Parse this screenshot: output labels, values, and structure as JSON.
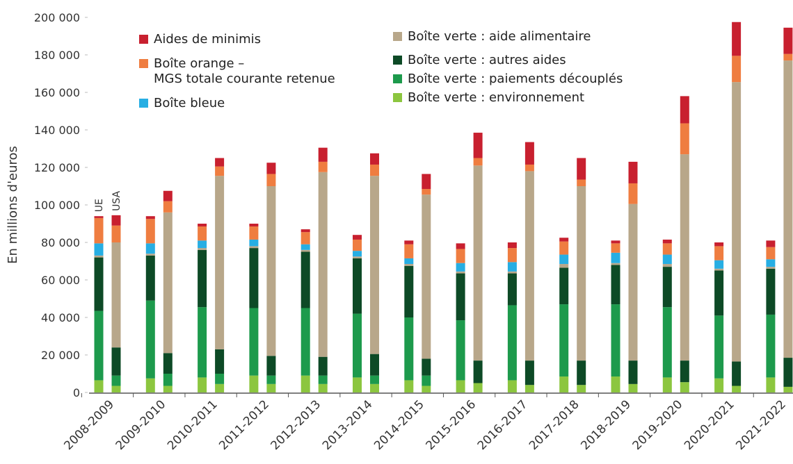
{
  "chart_data": {
    "type": "grouped-stacked-bar",
    "y_label": "En millions d'euros",
    "groups": [
      "UE",
      "USA"
    ],
    "categories": [
      "2008-2009",
      "2009-2010",
      "2010-2011",
      "2011-2012",
      "2012-2013",
      "2013-2014",
      "2014-2015",
      "2015-2016",
      "2016-2017",
      "2017-2018",
      "2018-2019",
      "2019-2020",
      "2020-2021",
      "2021-2022"
    ],
    "ylim": [
      0,
      200000
    ],
    "yticks": [
      0,
      {
        "value": 20000,
        "label": "20 000"
      },
      {
        "value": 40000,
        "label": "40 000"
      },
      {
        "value": 60000,
        "label": "60 000"
      },
      {
        "value": 80000,
        "label": "80 000"
      },
      {
        "value": 100000,
        "label": "100 000"
      },
      {
        "value": 120000,
        "label": "120 000"
      },
      {
        "value": 140000,
        "label": "140 000"
      },
      {
        "value": 160000,
        "label": "160 000"
      },
      {
        "value": 180000,
        "label": "180 000"
      },
      {
        "value": 200000,
        "label": "200 000"
      }
    ],
    "series": [
      {
        "name": "Boîte verte : environnement",
        "color": "#8cc63f",
        "values": [
          [
            6500,
            3500
          ],
          [
            7500,
            3500
          ],
          [
            8000,
            4500
          ],
          [
            9000,
            4500
          ],
          [
            9000,
            4500
          ],
          [
            8000,
            4500
          ],
          [
            6500,
            3500
          ],
          [
            6500,
            5000
          ],
          [
            6500,
            4000
          ],
          [
            8500,
            4000
          ],
          [
            8500,
            4500
          ],
          [
            8000,
            5500
          ],
          [
            7500,
            3500
          ],
          [
            8000,
            3000
          ]
        ]
      },
      {
        "name": "Boîte verte : paiements découplés",
        "color": "#1d9a4c",
        "values": [
          [
            37000,
            5500
          ],
          [
            41500,
            6500
          ],
          [
            37500,
            5500
          ],
          [
            36000,
            4500
          ],
          [
            36000,
            4500
          ],
          [
            34000,
            4500
          ],
          [
            33500,
            5500
          ],
          [
            32000,
            0
          ],
          [
            40000,
            0
          ],
          [
            38500,
            0
          ],
          [
            38500,
            0
          ],
          [
            37500,
            0
          ],
          [
            33500,
            0
          ],
          [
            33500,
            0
          ]
        ]
      },
      {
        "name": "Boîte verte : autres aides",
        "color": "#0d4a26",
        "values": [
          [
            28500,
            15000
          ],
          [
            24000,
            11000
          ],
          [
            30500,
            13000
          ],
          [
            32000,
            10500
          ],
          [
            30000,
            10000
          ],
          [
            29500,
            11500
          ],
          [
            27500,
            9000
          ],
          [
            25000,
            12000
          ],
          [
            17000,
            13000
          ],
          [
            19500,
            13000
          ],
          [
            21000,
            12500
          ],
          [
            21500,
            11500
          ],
          [
            24000,
            13000
          ],
          [
            24500,
            15500
          ]
        ]
      },
      {
        "name": "Boîte verte : aide alimentaire",
        "color": "#b8a78a",
        "values": [
          [
            1000,
            56000
          ],
          [
            1000,
            75000
          ],
          [
            1000,
            92500
          ],
          [
            1000,
            90500
          ],
          [
            1000,
            98500
          ],
          [
            1000,
            95000
          ],
          [
            1000,
            87500
          ],
          [
            1000,
            104000
          ],
          [
            1000,
            101000
          ],
          [
            2000,
            93000
          ],
          [
            1000,
            83500
          ],
          [
            1500,
            110000
          ],
          [
            1000,
            149000
          ],
          [
            1000,
            158500
          ]
        ]
      },
      {
        "name": "Boîte bleue",
        "color": "#27aee3",
        "values": [
          [
            6500,
            0
          ],
          [
            5500,
            0
          ],
          [
            4000,
            0
          ],
          [
            3500,
            0
          ],
          [
            3000,
            0
          ],
          [
            3000,
            0
          ],
          [
            3000,
            0
          ],
          [
            4500,
            0
          ],
          [
            5000,
            0
          ],
          [
            5000,
            0
          ],
          [
            5500,
            0
          ],
          [
            5000,
            0
          ],
          [
            4500,
            0
          ],
          [
            4000,
            0
          ]
        ]
      },
      {
        "name": "Boîte orange –\nMGS totale courante retenue",
        "color": "#ef7d40",
        "values": [
          [
            13500,
            9000
          ],
          [
            13000,
            6000
          ],
          [
            7500,
            5000
          ],
          [
            7000,
            6500
          ],
          [
            6500,
            5500
          ],
          [
            6000,
            6000
          ],
          [
            7500,
            3000
          ],
          [
            7500,
            4000
          ],
          [
            7500,
            3500
          ],
          [
            7000,
            3500
          ],
          [
            5000,
            11000
          ],
          [
            6000,
            16500
          ],
          [
            7500,
            14000
          ],
          [
            6500,
            3500
          ]
        ]
      },
      {
        "name": "Aides de minimis",
        "color": "#c8202f",
        "values": [
          [
            1000,
            5500
          ],
          [
            1500,
            5500
          ],
          [
            1500,
            4500
          ],
          [
            1500,
            6000
          ],
          [
            1500,
            7500
          ],
          [
            2500,
            6000
          ],
          [
            2000,
            8000
          ],
          [
            3000,
            13500
          ],
          [
            3000,
            12000
          ],
          [
            2000,
            11500
          ],
          [
            1500,
            11500
          ],
          [
            2000,
            14500
          ],
          [
            2000,
            18000
          ],
          [
            3500,
            14000
          ]
        ]
      }
    ]
  }
}
